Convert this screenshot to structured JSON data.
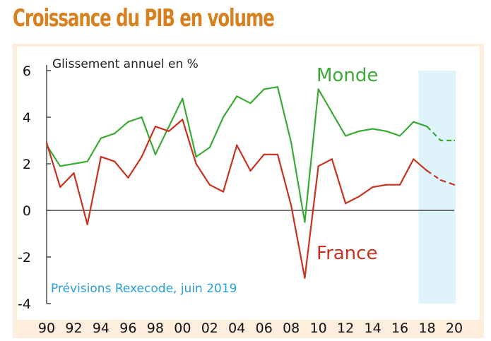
{
  "colors": {
    "title": "#d9801e",
    "frame": "#fdeedd",
    "monde": "#3aaa35",
    "france": "#c8321e",
    "forecast_band": "#dff3fb",
    "note": "#2a9fd6",
    "axis": "#222222"
  },
  "chart_data": {
    "type": "line",
    "title": "Croissance du PIB en volume",
    "ylabel": "Glissement annuel en %",
    "note": "Prévisions Rexecode, juin 2019",
    "ylim": [
      -4,
      6
    ],
    "yticks": [
      6,
      4,
      2,
      0,
      -2,
      -4
    ],
    "ytick_labels": [
      "6",
      "4",
      "2",
      "0",
      "-2",
      "-4"
    ],
    "xlim": [
      1990,
      2020
    ],
    "xticks": [
      1990,
      1992,
      1994,
      1996,
      1998,
      2000,
      2002,
      2004,
      2006,
      2008,
      2010,
      2012,
      2014,
      2016,
      2018,
      2020
    ],
    "xtick_labels": [
      "90",
      "92",
      "94",
      "96",
      "98",
      "00",
      "02",
      "04",
      "06",
      "08",
      "10",
      "12",
      "14",
      "16",
      "18",
      "20"
    ],
    "forecast_start": 2018,
    "forecast_end": 2020,
    "series": [
      {
        "name": "Monde",
        "color": "#3aaa35",
        "x": [
          1990,
          1991,
          1992,
          1993,
          1994,
          1995,
          1996,
          1997,
          1998,
          1999,
          2000,
          2001,
          2002,
          2003,
          2004,
          2005,
          2006,
          2007,
          2008,
          2009,
          2010,
          2011,
          2012,
          2013,
          2014,
          2015,
          2016,
          2017,
          2018,
          2019,
          2020
        ],
        "values": [
          2.8,
          1.9,
          2.0,
          2.1,
          3.1,
          3.3,
          3.8,
          4.0,
          2.4,
          3.6,
          4.8,
          2.3,
          2.7,
          4.0,
          4.9,
          4.6,
          5.2,
          5.3,
          2.9,
          -0.5,
          5.2,
          4.2,
          3.2,
          3.4,
          3.5,
          3.4,
          3.2,
          3.8,
          3.6,
          3.0,
          3.0
        ],
        "forecast_from": 2018
      },
      {
        "name": "France",
        "color": "#c8321e",
        "x": [
          1990,
          1991,
          1992,
          1993,
          1994,
          1995,
          1996,
          1997,
          1998,
          1999,
          2000,
          2001,
          2002,
          2003,
          2004,
          2005,
          2006,
          2007,
          2008,
          2009,
          2010,
          2011,
          2012,
          2013,
          2014,
          2015,
          2016,
          2017,
          2018,
          2019,
          2020
        ],
        "values": [
          2.9,
          1.0,
          1.6,
          -0.6,
          2.3,
          2.1,
          1.4,
          2.3,
          3.6,
          3.4,
          3.9,
          2.0,
          1.1,
          0.8,
          2.8,
          1.7,
          2.4,
          2.4,
          0.2,
          -2.9,
          1.9,
          2.2,
          0.3,
          0.6,
          1.0,
          1.1,
          1.1,
          2.2,
          1.7,
          1.3,
          1.1
        ],
        "forecast_from": 2018
      }
    ]
  }
}
